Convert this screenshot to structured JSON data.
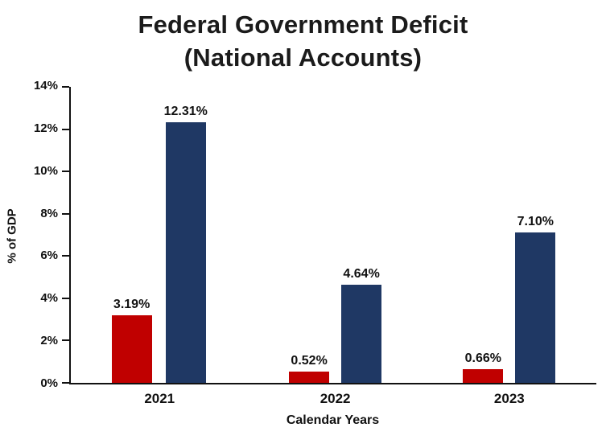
{
  "title": {
    "line1": "Federal Government Deficit",
    "line2": "(National Accounts)"
  },
  "chart_data": {
    "type": "bar",
    "title": "Federal Government Deficit (National Accounts)",
    "xlabel": "Calendar Years",
    "ylabel": "% of GDP",
    "ylim": [
      0,
      14
    ],
    "yticks": [
      0,
      2,
      4,
      6,
      8,
      10,
      12,
      14
    ],
    "ytick_labels": [
      "0%",
      "2%",
      "4%",
      "6%",
      "8%",
      "10%",
      "12%",
      "14%"
    ],
    "categories": [
      "2021",
      "2022",
      "2023"
    ],
    "series": [
      {
        "name": "series-red",
        "color": "#c00000",
        "values": [
          3.19,
          0.52,
          0.66
        ],
        "labels": [
          "3.19%",
          "0.52%",
          "0.66%"
        ]
      },
      {
        "name": "series-navy",
        "color": "#1f3864",
        "values": [
          12.31,
          4.64,
          7.1
        ],
        "labels": [
          "12.31%",
          "4.64%",
          "7.10%"
        ]
      }
    ],
    "grid": false,
    "legend": "none"
  }
}
